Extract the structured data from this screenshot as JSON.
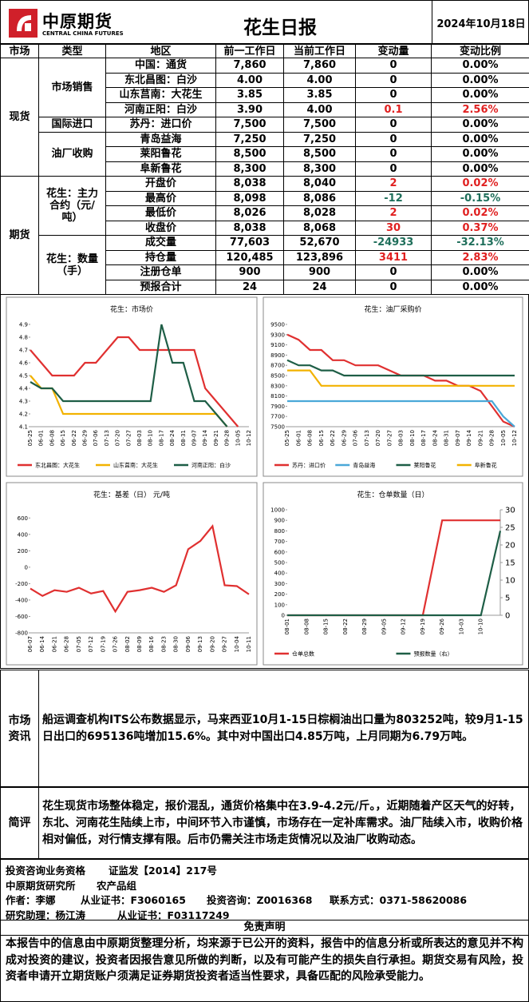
{
  "header": {
    "logo_cn": "中原期货",
    "logo_en": "CENTRAL CHINA FUTURES",
    "title": "花生日报",
    "date": "2024年10月18日"
  },
  "table": {
    "columns": [
      "市场",
      "类型",
      "地区",
      "前一工作日",
      "当前工作日",
      "变动量",
      "变动比例"
    ],
    "groups": [
      {
        "market": "现货",
        "types": [
          {
            "type": "市场销售",
            "rows": [
              [
                "中国：通货",
                "7,860",
                "7,860",
                "0",
                "0.00%"
              ],
              [
                "东北昌图：白沙",
                "4.00",
                "4.00",
                "0",
                "0.00%"
              ],
              [
                "山东莒南：大花生",
                "3.85",
                "3.85",
                "0",
                "0.00%"
              ],
              [
                "河南正阳：白沙",
                "3.90",
                "4.00",
                "0.1",
                "2.56%"
              ]
            ]
          },
          {
            "type": "国际进口",
            "rows": [
              [
                "苏丹：进口价",
                "7,500",
                "7,500",
                "0",
                "0.00%"
              ]
            ]
          },
          {
            "type": "油厂收购",
            "rows": [
              [
                "青岛益海",
                "7,250",
                "7,250",
                "0",
                "0.00%"
              ],
              [
                "莱阳鲁花",
                "8,500",
                "8,500",
                "0",
                "0.00%"
              ],
              [
                "阜新鲁花",
                "8,300",
                "8,300",
                "0",
                "0.00%"
              ]
            ]
          }
        ]
      },
      {
        "market": "期货",
        "types": [
          {
            "type": "花生：主力合约（元/吨）",
            "rows": [
              [
                "开盘价",
                "8,038",
                "8,040",
                "2",
                "0.02%"
              ],
              [
                "最高价",
                "8,098",
                "8,086",
                "-12",
                "-0.15%"
              ],
              [
                "最低价",
                "8,026",
                "8,028",
                "2",
                "0.02%"
              ],
              [
                "收盘价",
                "8,038",
                "8,068",
                "30",
                "0.37%"
              ]
            ]
          },
          {
            "type": "花生：数量（手）",
            "rows": [
              [
                "成交量",
                "77,603",
                "52,670",
                "-24933",
                "-32.13%"
              ],
              [
                "持仓量",
                "120,485",
                "123,896",
                "3411",
                "2.83%"
              ],
              [
                "注册仓单",
                "900",
                "900",
                "0",
                "0.00%"
              ],
              [
                "预报合计",
                "24",
                "24",
                "0",
                "0.00%"
              ]
            ]
          }
        ]
      }
    ]
  },
  "chart_data": [
    {
      "type": "line",
      "title": "花生：市场价",
      "categories": [
        "05-25",
        "06-01",
        "06-08",
        "06-15",
        "06-22",
        "06-29",
        "07-06",
        "07-13",
        "07-20",
        "07-27",
        "08-03",
        "08-10",
        "08-17",
        "08-24",
        "08-31",
        "09-07",
        "09-14",
        "09-21",
        "09-28",
        "10-05",
        "10-12"
      ],
      "ylim": [
        4.1,
        4.9
      ],
      "yticks": [
        4.1,
        4.2,
        4.3,
        4.4,
        4.5,
        4.6,
        4.7,
        4.8,
        4.9
      ],
      "series": [
        {
          "name": "东北昌图：大花生",
          "color": "#e03030",
          "values": [
            4.7,
            4.6,
            4.5,
            4.5,
            4.5,
            4.6,
            4.6,
            4.7,
            4.8,
            4.8,
            4.7,
            4.7,
            4.7,
            4.7,
            4.7,
            4.7,
            4.4,
            4.3,
            4.2,
            4.1,
            null
          ]
        },
        {
          "name": "山东莒南：大花生",
          "color": "#f2b200",
          "values": [
            4.5,
            4.4,
            4.4,
            4.2,
            4.2,
            4.2,
            4.2,
            4.2,
            4.2,
            4.2,
            4.2,
            4.2,
            4.2,
            4.2,
            4.2,
            4.2,
            4.2,
            4.2,
            4.1,
            null,
            null
          ]
        },
        {
          "name": "河南正阳：白沙",
          "color": "#1e5e46",
          "values": [
            4.45,
            4.4,
            4.4,
            4.3,
            4.3,
            4.3,
            4.3,
            4.3,
            4.3,
            4.3,
            4.3,
            4.3,
            4.9,
            4.6,
            4.6,
            4.3,
            4.3,
            4.2,
            4.1,
            null,
            null
          ]
        }
      ]
    },
    {
      "type": "line",
      "title": "花生：油厂采购价",
      "categories": [
        "05-25",
        "06-01",
        "06-08",
        "06-15",
        "06-22",
        "06-29",
        "07-06",
        "07-13",
        "07-20",
        "07-27",
        "08-03",
        "08-10",
        "08-17",
        "08-24",
        "08-31",
        "09-07",
        "09-14",
        "09-21",
        "09-28",
        "10-05",
        "10-12"
      ],
      "ylim": [
        7500,
        9500
      ],
      "yticks": [
        7500,
        7700,
        7900,
        8100,
        8300,
        8500,
        8700,
        8900,
        9100,
        9300,
        9500
      ],
      "series": [
        {
          "name": "苏丹：进口价",
          "color": "#e03030",
          "values": [
            9300,
            9200,
            9000,
            9000,
            8800,
            8800,
            8700,
            8700,
            8700,
            8600,
            8500,
            8500,
            8500,
            8400,
            8400,
            8300,
            8300,
            8200,
            7900,
            7600,
            7500
          ]
        },
        {
          "name": "青岛益海",
          "color": "#4aa8d8",
          "values": [
            8000,
            8000,
            8000,
            8000,
            8000,
            8000,
            8000,
            8000,
            8000,
            8000,
            8000,
            8000,
            8000,
            8000,
            8000,
            8000,
            8000,
            8000,
            8000,
            7700,
            7500
          ]
        },
        {
          "name": "莱阳鲁花",
          "color": "#1e5e46",
          "values": [
            8800,
            8700,
            8700,
            8600,
            8600,
            8500,
            8500,
            8500,
            8500,
            8500,
            8500,
            8500,
            8500,
            8500,
            8500,
            8500,
            8500,
            8500,
            8500,
            8500,
            8500
          ]
        },
        {
          "name": "阜新鲁花",
          "color": "#f2b200",
          "values": [
            8600,
            8600,
            8600,
            8300,
            8300,
            8300,
            8300,
            8300,
            8300,
            8300,
            8300,
            8300,
            8300,
            8300,
            8300,
            8300,
            8300,
            8300,
            8300,
            8300,
            8300
          ]
        }
      ]
    },
    {
      "type": "line",
      "title": "花生：基差（日） 元/吨",
      "categories": [
        "06-07",
        "06-14",
        "06-21",
        "06-28",
        "07-05",
        "07-12",
        "07-19",
        "07-26",
        "08-02",
        "08-09",
        "08-16",
        "08-23",
        "08-30",
        "09-06",
        "09-13",
        "09-20",
        "09-27",
        "10-04",
        "10-11"
      ],
      "ylim": [
        -800,
        700
      ],
      "yticks": [
        -800,
        -600,
        -400,
        -200,
        0,
        200,
        400,
        600
      ],
      "series": [
        {
          "color": "#e03030",
          "values": [
            -260,
            -350,
            -280,
            -300,
            -250,
            -320,
            -290,
            -540,
            -300,
            -280,
            -250,
            -300,
            -220,
            220,
            320,
            500,
            -220,
            -230,
            -330
          ]
        }
      ]
    },
    {
      "type": "line",
      "title": "花生：仓单数量（日）",
      "categories": [
        "08-01",
        "08-08",
        "08-15",
        "08-22",
        "08-29",
        "09-05",
        "09-12",
        "09-19",
        "09-26",
        "10-03",
        "10-10",
        null
      ],
      "ylim": [
        0,
        1000
      ],
      "yticks": [
        0,
        100,
        200,
        300,
        400,
        500,
        600,
        700,
        800,
        900,
        1000
      ],
      "y2lim": [
        0,
        30
      ],
      "y2ticks": [
        0,
        5,
        10,
        15,
        20,
        25,
        30
      ],
      "series": [
        {
          "name": "仓单总数",
          "color": "#e03030",
          "values": [
            0,
            0,
            0,
            0,
            0,
            0,
            0,
            0,
            900,
            900,
            900,
            900
          ]
        },
        {
          "name": "预报数量（右）",
          "color": "#1e5e46",
          "axis": "y2",
          "values": [
            0,
            0,
            0,
            0,
            0,
            0,
            0,
            0,
            0,
            0,
            0,
            24
          ]
        }
      ]
    }
  ],
  "news": {
    "label": "市场资讯",
    "text": "船运调查机构ITS公布数据显示，马来西亚10月1-15日棕榈油出口量为803252吨，较9月1-15日出口的695136吨增加15.6%。其中对中国出口4.85万吨，上月同期为6.79万吨。"
  },
  "comment": {
    "label": "简评",
    "text": "花生现货市场整体稳定，报价混乱，通货价格集中在3.9-4.2元/斤。，近期随着产区天气的好转，东北、河南花生陆续上市，中间环节入市谨慎，市场存在一定补库需求。油厂陆续入市，收购价格相对偏低，对行情支撑有限。后市仍需关注市场走货情况以及油厂收购动态。"
  },
  "credentials": [
    [
      "投资咨询业务资格",
      "证监发【2014】217号"
    ],
    [
      "中原期货研究所",
      "农产品组"
    ],
    [
      "作者：李娜",
      "从业证书：F3060165",
      "投资咨询：Z0016368",
      "联系方式：0371-58620086"
    ],
    [
      "研究助理：杨江涛",
      "从业证书：F03117249"
    ]
  ],
  "disclaimer": {
    "title": "免责声明",
    "text": "本报告中的信息由中原期货整理分析，均来源于已公开的资料，报告中的信息分析或所表达的意见并不构成对投资的建议，投资者因报告意见所做的判断，以及有可能产生的损失自行承担。期货交易有风险，投资者申请开立期货账户须满足证券期货投资者适当性要求，具备匹配的风险承受能力。"
  }
}
